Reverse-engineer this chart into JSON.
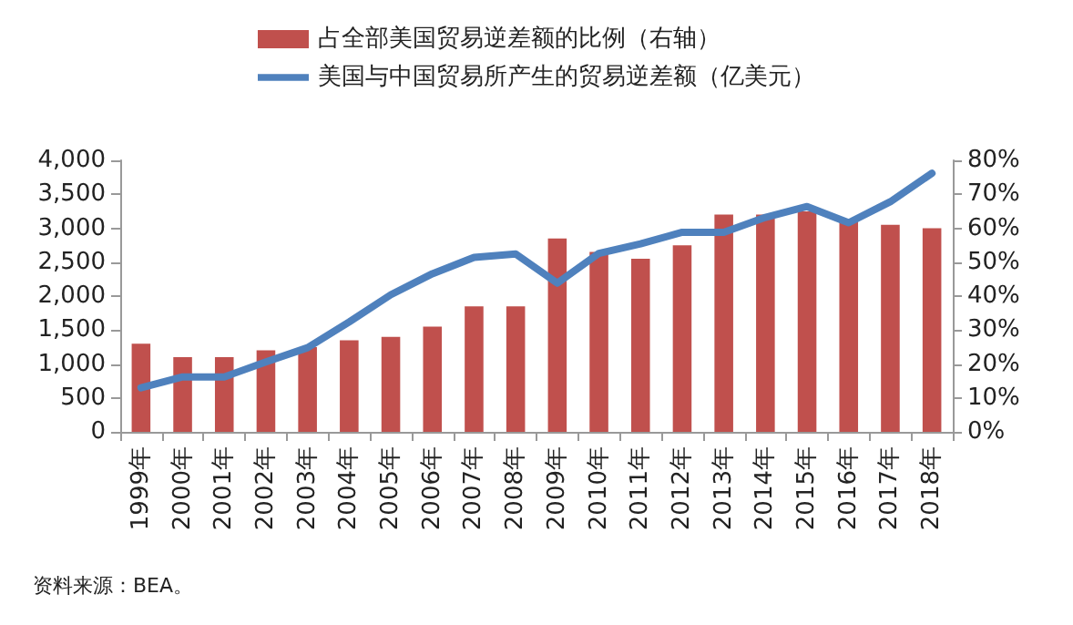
{
  "chart_data": {
    "type": "bar",
    "categories": [
      "1999年",
      "2000年",
      "2001年",
      "2002年",
      "2003年",
      "2004年",
      "2005年",
      "2006年",
      "2007年",
      "2008年",
      "2009年",
      "2010年",
      "2011年",
      "2012年",
      "2013年",
      "2014年",
      "2015年",
      "2016年",
      "2017年",
      "2018年"
    ],
    "series": [
      {
        "name": "占全部美国贸易逆差额的比例（右轴）",
        "axis": "y2",
        "color": "#c0504d",
        "values": [
          26,
          22,
          22,
          24,
          25,
          27,
          28,
          31,
          37,
          37,
          57,
          53,
          51,
          55,
          64,
          64,
          65,
          62,
          61,
          60
        ]
      },
      {
        "name": "美国与中国贸易所产生的贸易逆差额（亿美元）",
        "type": "line",
        "color": "#4f81bd",
        "values": [
          650,
          810,
          810,
          1030,
          1240,
          1620,
          2020,
          2330,
          2570,
          2620,
          2190,
          2630,
          2770,
          2940,
          2940,
          3160,
          3320,
          3080,
          3390,
          3810
        ]
      }
    ],
    "ylim": [
      0,
      4000
    ],
    "yticks": [
      {
        "value": 0,
        "label": "0"
      },
      {
        "value": 500,
        "label": "500"
      },
      {
        "value": 1000,
        "label": "1,000"
      },
      {
        "value": 1500,
        "label": "1,500"
      },
      {
        "value": 2000,
        "label": "2,000"
      },
      {
        "value": 2500,
        "label": "2,500"
      },
      {
        "value": 3000,
        "label": "3,000"
      },
      {
        "value": 3500,
        "label": "3,500"
      },
      {
        "value": 4000,
        "label": "4,000"
      }
    ],
    "y2lim": [
      0,
      80
    ],
    "y2ticks": [
      {
        "value": 0,
        "label": "0%"
      },
      {
        "value": 10,
        "label": "10%"
      },
      {
        "value": 20,
        "label": "20%"
      },
      {
        "value": 30,
        "label": "30%"
      },
      {
        "value": 40,
        "label": "40%"
      },
      {
        "value": 50,
        "label": "50%"
      },
      {
        "value": 60,
        "label": "60%"
      },
      {
        "value": 70,
        "label": "70%"
      },
      {
        "value": 80,
        "label": "80%"
      }
    ],
    "legend": "top",
    "grid": false,
    "marker": "none",
    "annotations": [
      "资料来源：BEA。"
    ]
  }
}
